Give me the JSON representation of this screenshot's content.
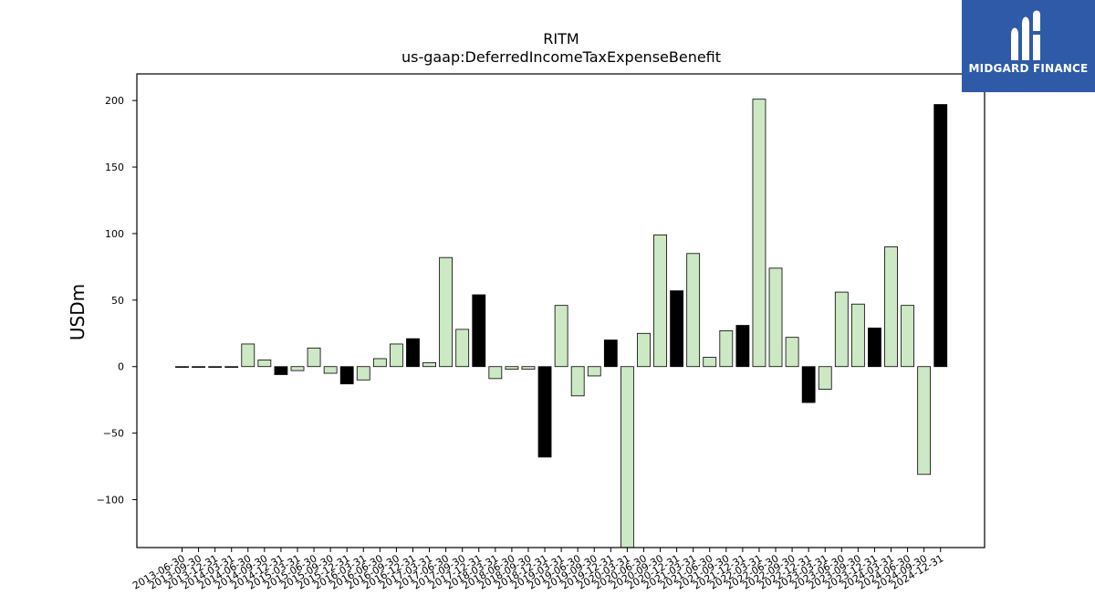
{
  "logo": {
    "brand": "MIDGARD FINANCE"
  },
  "chart_data": {
    "type": "bar",
    "title": "RITM",
    "subtitle": "us-gaap:DeferredIncomeTaxExpenseBenefit",
    "xlabel": "",
    "ylabel": "USDm",
    "ylim": [
      -136,
      220
    ],
    "yticks": [
      -100,
      -50,
      0,
      50,
      100,
      150,
      200
    ],
    "ytick_labels": [
      "−100",
      "−50",
      "0",
      "50",
      "100",
      "150",
      "200"
    ],
    "colors": {
      "quarter": "#cce8c4",
      "year_end": "#000000",
      "edge": "#000000"
    },
    "categories": [
      "2013-06-30",
      "2013-09-30",
      "2013-12-31",
      "2014-03-31",
      "2014-06-30",
      "2014-09-30",
      "2014-12-31",
      "2015-03-31",
      "2015-06-30",
      "2015-09-30",
      "2015-12-31",
      "2016-03-31",
      "2016-06-30",
      "2016-09-30",
      "2016-12-31",
      "2017-03-31",
      "2017-06-30",
      "2017-09-30",
      "2017-12-31",
      "2018-03-31",
      "2018-06-30",
      "2018-09-30",
      "2018-12-31",
      "2019-03-31",
      "2019-06-30",
      "2019-09-30",
      "2019-12-31",
      "2020-03-31",
      "2020-06-30",
      "2020-09-30",
      "2020-12-31",
      "2021-03-31",
      "2021-06-30",
      "2021-09-30",
      "2021-12-31",
      "2022-03-31",
      "2022-06-30",
      "2022-09-30",
      "2022-12-31",
      "2023-03-31",
      "2023-06-30",
      "2023-09-30",
      "2023-12-31",
      "2024-03-31",
      "2024-06-30",
      "2024-09-30",
      "2024-12-31"
    ],
    "values": [
      0,
      0,
      0,
      0,
      17,
      5,
      -6,
      -3,
      14,
      -5,
      -13,
      -10,
      6,
      17,
      21,
      3,
      82,
      28,
      54,
      -9,
      -2,
      -2,
      -68,
      46,
      -22,
      -7,
      20,
      -136,
      25,
      99,
      57,
      85,
      7,
      27,
      31,
      201,
      74,
      22,
      -27,
      -17,
      56,
      47,
      29,
      90,
      46,
      -81,
      197
    ]
  }
}
